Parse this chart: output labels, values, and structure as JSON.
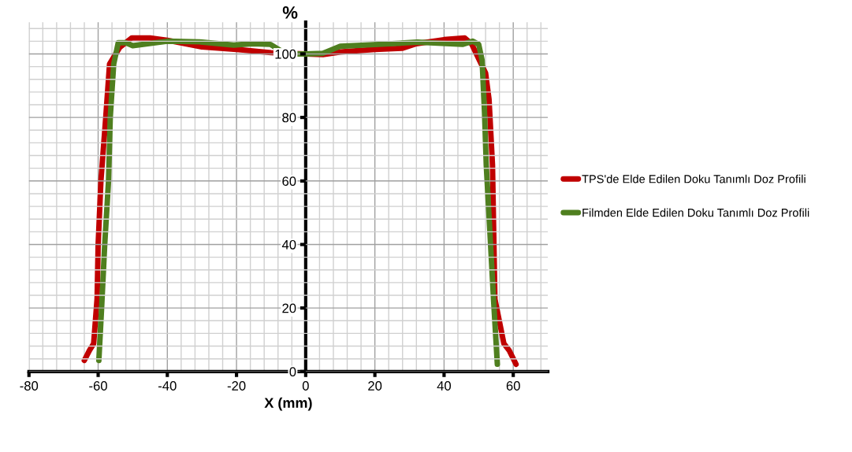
{
  "chart_data": {
    "type": "line",
    "xlabel": "X (mm)",
    "ylabel": "%",
    "xlim": [
      -80,
      70
    ],
    "xticks": [
      -80,
      -60,
      -40,
      -20,
      0,
      20,
      40,
      60
    ],
    "ylim": [
      0,
      110
    ],
    "yticks": [
      0,
      20,
      40,
      60,
      80,
      100
    ],
    "grid": true,
    "legend": "right",
    "marker": "none",
    "line_style": "solid",
    "series": [
      {
        "name": "TPS'de Elde Edilen Doku Tanımlı Doz Profili",
        "color": "#c00000",
        "x": [
          -64,
          -62.5,
          -61.3,
          -60.3,
          -60,
          -59.2,
          -57.8,
          -56.7,
          -53.8,
          -50.3,
          -45,
          -40,
          -30,
          -20,
          -10,
          0,
          5,
          10,
          20,
          28,
          32,
          40,
          46,
          48,
          50,
          52,
          53,
          54,
          54.7,
          57.3,
          58.8,
          60.8
        ],
        "values": [
          3.5,
          6.7,
          8.8,
          23,
          40,
          60,
          80,
          96.8,
          102,
          105,
          105,
          104.3,
          102.2,
          101.4,
          100.4,
          100,
          99.8,
          100.6,
          101.4,
          101.8,
          103.2,
          104.5,
          105,
          103.1,
          98.5,
          94,
          85.7,
          65,
          22.8,
          8.8,
          6.7,
          2.3
        ]
      },
      {
        "name": "Filmden Elde Edilen Doku Tanımlı Doz Profili",
        "color": "#4f7f1f",
        "x": [
          -59.8,
          -59,
          -58.1,
          -57,
          -56.5,
          -55.5,
          -54.2,
          -52,
          -50,
          -40,
          -30.7,
          -20.8,
          -15.5,
          -10.2,
          -5.7,
          0,
          5,
          10,
          21,
          32.3,
          45.3,
          48.3,
          50,
          51,
          51.7,
          52.2,
          54.3,
          55.4
        ],
        "values": [
          3.5,
          20,
          40,
          60,
          80,
          96.8,
          103.5,
          103.5,
          102.6,
          104,
          103.8,
          102.8,
          103.2,
          103,
          100,
          100,
          100.2,
          102.4,
          103,
          103.7,
          103,
          104,
          103,
          98,
          81.5,
          65,
          22.8,
          2.3
        ]
      }
    ]
  }
}
